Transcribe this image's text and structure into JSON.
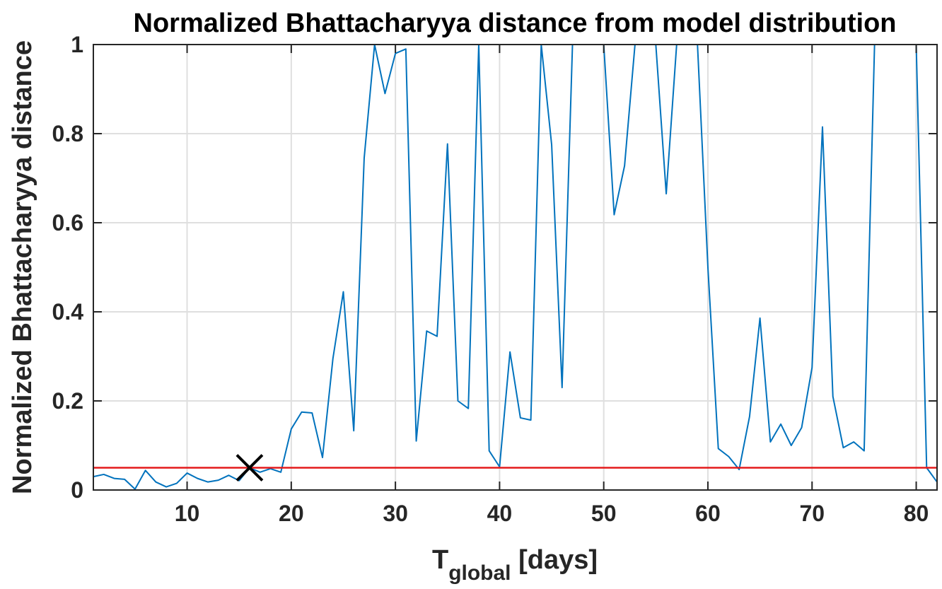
{
  "chart_data": {
    "type": "line",
    "title": "Normalized Bhattacharyya distance from model distribution",
    "xlabel": {
      "main": "T",
      "subscript": "global",
      "unit": " [days]"
    },
    "ylabel": "Normalized Bhattacharyya distance",
    "xlim": [
      1,
      82
    ],
    "ylim": [
      0,
      1
    ],
    "xticks": [
      10,
      20,
      30,
      40,
      50,
      60,
      70,
      80
    ],
    "yticks": [
      0,
      0.2,
      0.4,
      0.6,
      0.8,
      1
    ],
    "ytick_labels": [
      "0",
      "0.2",
      "0.4",
      "0.6",
      "0.8",
      "1"
    ],
    "grid": true,
    "series": [
      {
        "color": "#0072BD",
        "x": [
          1,
          2,
          3,
          4,
          5,
          6,
          7,
          8,
          9,
          10,
          11,
          12,
          13,
          14,
          15,
          16,
          17,
          18,
          19,
          20,
          21,
          22,
          23,
          24,
          25,
          26,
          27,
          28,
          29,
          30,
          31,
          32,
          33,
          34,
          35,
          36,
          37,
          38,
          39,
          40,
          41,
          42,
          43,
          44,
          45,
          46,
          47,
          48,
          49,
          50,
          51,
          52,
          53,
          54,
          55,
          56,
          57,
          58,
          59,
          60,
          61,
          62,
          63,
          64,
          65,
          66,
          67,
          68,
          69,
          70,
          71,
          72,
          73,
          74,
          75,
          76,
          77,
          78,
          79,
          80,
          81,
          82
        ],
        "y": [
          0.03,
          0.035,
          0.026,
          0.024,
          0.002,
          0.044,
          0.018,
          0.007,
          0.015,
          0.038,
          0.026,
          0.018,
          0.022,
          0.033,
          0.021,
          0.05,
          0.04,
          0.048,
          0.04,
          0.137,
          0.175,
          0.173,
          0.073,
          0.295,
          0.445,
          0.133,
          0.745,
          1.0,
          0.89,
          0.98,
          0.99,
          0.11,
          0.357,
          0.345,
          0.777,
          0.2,
          0.183,
          1.0,
          0.088,
          0.052,
          0.31,
          0.162,
          0.157,
          1.0,
          0.775,
          0.23,
          1.0,
          1.0,
          1.0,
          1.0,
          0.618,
          0.728,
          1.0,
          1.0,
          1.0,
          0.665,
          1.0,
          1.0,
          1.0,
          0.5,
          0.093,
          0.075,
          0.046,
          0.165,
          0.386,
          0.108,
          0.148,
          0.1,
          0.14,
          0.275,
          0.815,
          0.21,
          0.095,
          0.108,
          0.088,
          1.0,
          1.0,
          1.0,
          1.0,
          1.0,
          0.05,
          0.018
        ]
      }
    ],
    "threshold_line": {
      "y": 0.05,
      "color": "#e41a1c"
    },
    "marker": {
      "x": 16,
      "y": 0.05,
      "symbol": "x",
      "color": "#000000"
    }
  }
}
